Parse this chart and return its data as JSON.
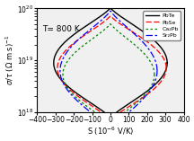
{
  "title": "T= 800 K",
  "xlabel": "S (10⁻⁶ V/K)",
  "ylabel": "σ/τ (Ω m s)⁻¹",
  "xlim": [
    -400,
    400
  ],
  "ylim_log": [
    1e+18,
    1e+20
  ],
  "legend": [
    "PbTe",
    "PbSe",
    "Ca₂Pb",
    "Sr₂Pb"
  ],
  "legend_colors": [
    "black",
    "red",
    "green",
    "blue"
  ],
  "legend_styles": [
    "-",
    "--",
    ":",
    "-."
  ],
  "background_color": "#f0f0f0"
}
